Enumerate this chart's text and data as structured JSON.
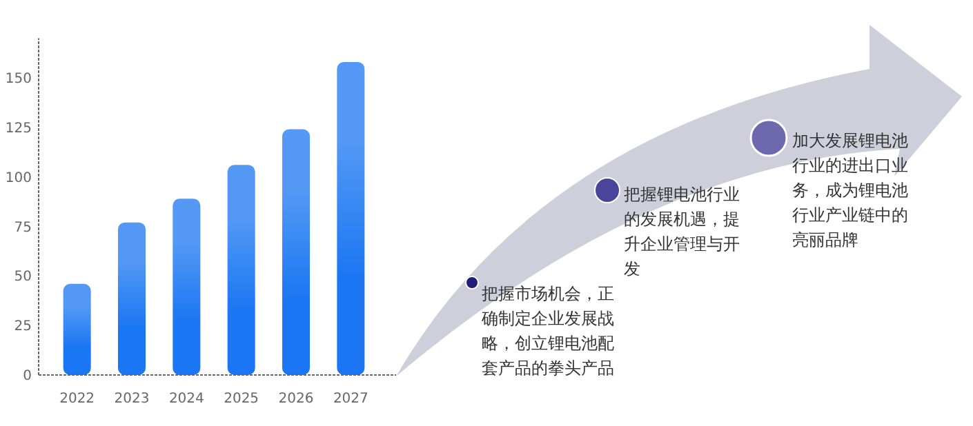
{
  "chart_data": {
    "type": "bar",
    "categories": [
      "2022",
      "2023",
      "2024",
      "2025",
      "2026",
      "2027"
    ],
    "values": [
      46,
      77,
      89,
      106,
      124,
      158
    ],
    "color": "#1a76f2",
    "ylim": [
      0,
      170
    ],
    "yticks": [
      0,
      25,
      50,
      75,
      100,
      125,
      150
    ],
    "grid": false,
    "annotations": [
      "把握市场机会，正确制定企业发展战略，创立锂电池配套产品的拳头产品",
      "把握锂电池行业的发展机遇，提升企业管理与开发",
      "加大发展锂电池行业的进出口业务，成为锂电池行业产业链中的亮丽品牌"
    ]
  }
}
